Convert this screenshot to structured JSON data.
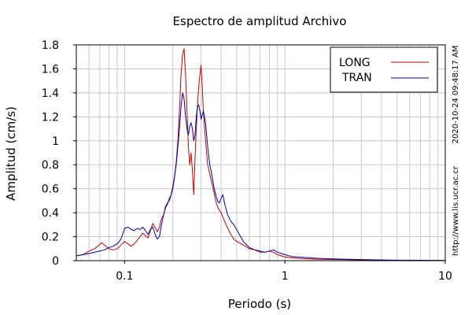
{
  "chart_data": {
    "type": "line",
    "title": "Espectro de amplitud Archivo",
    "xlabel": "Periodo (s)",
    "ylabel": "Amplitud (cm/s)",
    "x_scale": "log",
    "xlim": [
      0.05,
      10
    ],
    "ylim": [
      0,
      1.8
    ],
    "x_ticks": [
      {
        "value": 0.1,
        "label": "0.1"
      },
      {
        "value": 1,
        "label": "1"
      },
      {
        "value": 10,
        "label": "10"
      }
    ],
    "y_ticks": [
      {
        "value": 0,
        "label": "0"
      },
      {
        "value": 0.2,
        "label": "0.2"
      },
      {
        "value": 0.4,
        "label": "0.4"
      },
      {
        "value": 0.6,
        "label": "0.6"
      },
      {
        "value": 0.8,
        "label": "0.8"
      },
      {
        "value": 1.0,
        "label": "1"
      },
      {
        "value": 1.2,
        "label": "1.2"
      },
      {
        "value": 1.4,
        "label": "1.4"
      },
      {
        "value": 1.6,
        "label": "1.6"
      },
      {
        "value": 1.8,
        "label": "1.8"
      }
    ],
    "grid": true,
    "legend_position": "top-right",
    "series": [
      {
        "name": "LONG",
        "color": "#cc0000",
        "points": [
          [
            0.05,
            0.04
          ],
          [
            0.055,
            0.05
          ],
          [
            0.06,
            0.08
          ],
          [
            0.065,
            0.1
          ],
          [
            0.068,
            0.12
          ],
          [
            0.072,
            0.15
          ],
          [
            0.075,
            0.13
          ],
          [
            0.08,
            0.1
          ],
          [
            0.085,
            0.09
          ],
          [
            0.09,
            0.1
          ],
          [
            0.095,
            0.13
          ],
          [
            0.1,
            0.16
          ],
          [
            0.105,
            0.14
          ],
          [
            0.11,
            0.12
          ],
          [
            0.115,
            0.14
          ],
          [
            0.12,
            0.17
          ],
          [
            0.125,
            0.2
          ],
          [
            0.13,
            0.23
          ],
          [
            0.135,
            0.21
          ],
          [
            0.14,
            0.19
          ],
          [
            0.145,
            0.25
          ],
          [
            0.15,
            0.31
          ],
          [
            0.155,
            0.28
          ],
          [
            0.16,
            0.24
          ],
          [
            0.165,
            0.28
          ],
          [
            0.17,
            0.35
          ],
          [
            0.175,
            0.38
          ],
          [
            0.18,
            0.44
          ],
          [
            0.185,
            0.47
          ],
          [
            0.19,
            0.52
          ],
          [
            0.195,
            0.55
          ],
          [
            0.2,
            0.62
          ],
          [
            0.205,
            0.7
          ],
          [
            0.21,
            0.82
          ],
          [
            0.215,
            1.0
          ],
          [
            0.22,
            1.25
          ],
          [
            0.225,
            1.55
          ],
          [
            0.23,
            1.72
          ],
          [
            0.235,
            1.77
          ],
          [
            0.24,
            1.55
          ],
          [
            0.245,
            1.25
          ],
          [
            0.25,
            0.95
          ],
          [
            0.255,
            0.8
          ],
          [
            0.26,
            0.9
          ],
          [
            0.265,
            0.75
          ],
          [
            0.27,
            0.55
          ],
          [
            0.275,
            0.85
          ],
          [
            0.28,
            1.1
          ],
          [
            0.285,
            1.3
          ],
          [
            0.29,
            1.45
          ],
          [
            0.295,
            1.55
          ],
          [
            0.3,
            1.63
          ],
          [
            0.305,
            1.45
          ],
          [
            0.31,
            1.25
          ],
          [
            0.32,
            1.0
          ],
          [
            0.33,
            0.8
          ],
          [
            0.34,
            0.72
          ],
          [
            0.35,
            0.65
          ],
          [
            0.36,
            0.58
          ],
          [
            0.37,
            0.5
          ],
          [
            0.38,
            0.45
          ],
          [
            0.39,
            0.42
          ],
          [
            0.4,
            0.4
          ],
          [
            0.42,
            0.33
          ],
          [
            0.44,
            0.27
          ],
          [
            0.46,
            0.22
          ],
          [
            0.48,
            0.18
          ],
          [
            0.5,
            0.16
          ],
          [
            0.55,
            0.13
          ],
          [
            0.6,
            0.1
          ],
          [
            0.65,
            0.09
          ],
          [
            0.7,
            0.07
          ],
          [
            0.75,
            0.07
          ],
          [
            0.8,
            0.08
          ],
          [
            0.85,
            0.07
          ],
          [
            0.9,
            0.05
          ],
          [
            1.0,
            0.03
          ],
          [
            1.1,
            0.025
          ],
          [
            1.2,
            0.02
          ],
          [
            1.4,
            0.015
          ],
          [
            1.6,
            0.012
          ],
          [
            2.0,
            0.01
          ],
          [
            2.5,
            0.008
          ],
          [
            3.0,
            0.006
          ],
          [
            4.0,
            0.004
          ],
          [
            5.0,
            0.003
          ],
          [
            7.0,
            0.002
          ],
          [
            10.0,
            0.001
          ]
        ]
      },
      {
        "name": "TRAN",
        "color": "#0000aa",
        "points": [
          [
            0.05,
            0.04
          ],
          [
            0.055,
            0.05
          ],
          [
            0.06,
            0.06
          ],
          [
            0.065,
            0.07
          ],
          [
            0.07,
            0.08
          ],
          [
            0.075,
            0.09
          ],
          [
            0.08,
            0.11
          ],
          [
            0.085,
            0.12
          ],
          [
            0.09,
            0.14
          ],
          [
            0.095,
            0.18
          ],
          [
            0.1,
            0.27
          ],
          [
            0.105,
            0.28
          ],
          [
            0.11,
            0.26
          ],
          [
            0.115,
            0.25
          ],
          [
            0.12,
            0.27
          ],
          [
            0.125,
            0.26
          ],
          [
            0.13,
            0.28
          ],
          [
            0.135,
            0.25
          ],
          [
            0.14,
            0.22
          ],
          [
            0.145,
            0.26
          ],
          [
            0.15,
            0.28
          ],
          [
            0.155,
            0.22
          ],
          [
            0.16,
            0.18
          ],
          [
            0.165,
            0.2
          ],
          [
            0.17,
            0.3
          ],
          [
            0.175,
            0.38
          ],
          [
            0.18,
            0.45
          ],
          [
            0.185,
            0.48
          ],
          [
            0.19,
            0.5
          ],
          [
            0.195,
            0.55
          ],
          [
            0.2,
            0.6
          ],
          [
            0.205,
            0.7
          ],
          [
            0.21,
            0.8
          ],
          [
            0.215,
            0.95
          ],
          [
            0.22,
            1.1
          ],
          [
            0.225,
            1.28
          ],
          [
            0.23,
            1.4
          ],
          [
            0.235,
            1.35
          ],
          [
            0.24,
            1.2
          ],
          [
            0.245,
            1.1
          ],
          [
            0.25,
            1.05
          ],
          [
            0.255,
            1.12
          ],
          [
            0.26,
            1.15
          ],
          [
            0.265,
            1.1
          ],
          [
            0.27,
            1.0
          ],
          [
            0.275,
            1.05
          ],
          [
            0.28,
            1.2
          ],
          [
            0.285,
            1.28
          ],
          [
            0.29,
            1.3
          ],
          [
            0.295,
            1.25
          ],
          [
            0.3,
            1.18
          ],
          [
            0.31,
            1.25
          ],
          [
            0.32,
            1.15
          ],
          [
            0.33,
            0.95
          ],
          [
            0.34,
            0.8
          ],
          [
            0.35,
            0.72
          ],
          [
            0.36,
            0.62
          ],
          [
            0.37,
            0.55
          ],
          [
            0.38,
            0.5
          ],
          [
            0.39,
            0.48
          ],
          [
            0.4,
            0.52
          ],
          [
            0.41,
            0.55
          ],
          [
            0.42,
            0.48
          ],
          [
            0.44,
            0.38
          ],
          [
            0.46,
            0.33
          ],
          [
            0.48,
            0.3
          ],
          [
            0.5,
            0.26
          ],
          [
            0.55,
            0.16
          ],
          [
            0.6,
            0.11
          ],
          [
            0.65,
            0.09
          ],
          [
            0.7,
            0.08
          ],
          [
            0.75,
            0.07
          ],
          [
            0.8,
            0.08
          ],
          [
            0.85,
            0.09
          ],
          [
            0.9,
            0.07
          ],
          [
            1.0,
            0.05
          ],
          [
            1.1,
            0.035
          ],
          [
            1.2,
            0.03
          ],
          [
            1.4,
            0.025
          ],
          [
            1.6,
            0.02
          ],
          [
            2.0,
            0.015
          ],
          [
            2.5,
            0.012
          ],
          [
            3.0,
            0.009
          ],
          [
            4.0,
            0.006
          ],
          [
            5.0,
            0.004
          ],
          [
            7.0,
            0.003
          ],
          [
            10.0,
            0.002
          ]
        ]
      }
    ],
    "side_texts": {
      "timestamp": "2020-10-24 09:48:17 AM",
      "url": "http://www.lis.ucr.ac.cr"
    }
  }
}
